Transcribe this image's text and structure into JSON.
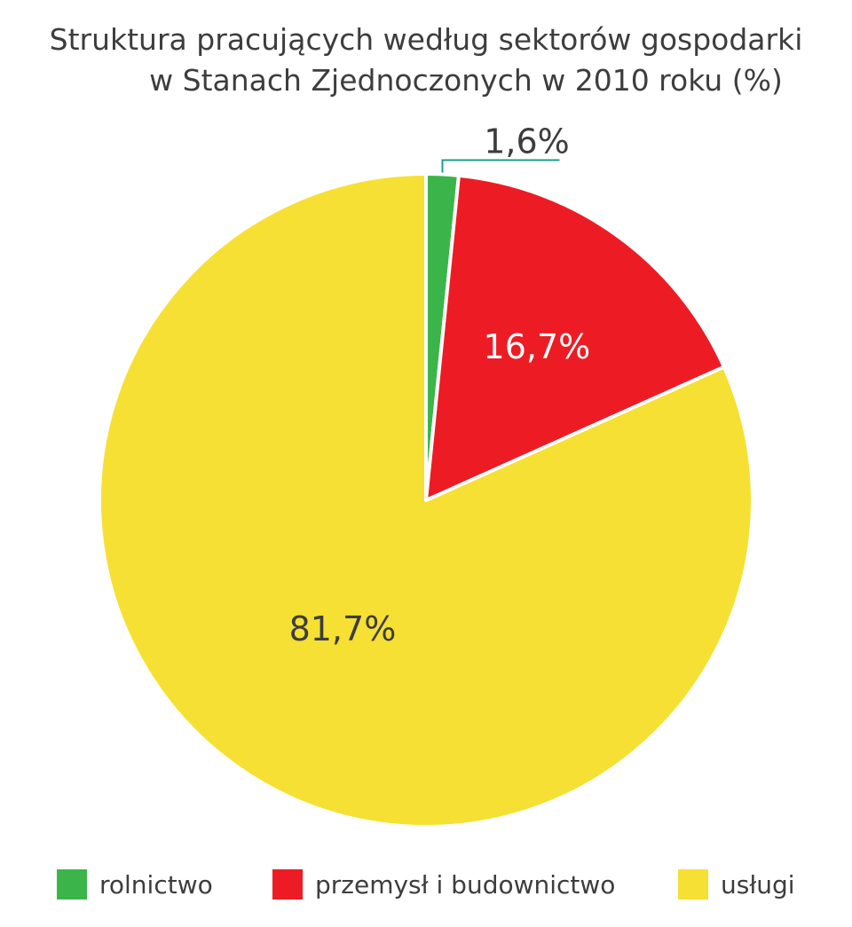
{
  "chart_data": {
    "type": "pie",
    "title_line1": "Struktura pracujących według sektorów gospodarki",
    "title_line2": "w Stanach Zjednoczonych w 2010 roku (%)",
    "slices": [
      {
        "name": "rolnictwo",
        "value": 1.6,
        "label": "1,6%",
        "color": "#3bb54a"
      },
      {
        "name": "przemysł i budownictwo",
        "value": 16.7,
        "label": "16,7%",
        "color": "#ed1c24"
      },
      {
        "name": "usługi",
        "value": 81.7,
        "label": "81,7%",
        "color": "#f6e033"
      }
    ],
    "start_angle": "top",
    "direction": "clockwise",
    "legend_position": "bottom"
  },
  "colors": {
    "leader_line": "#1a9e8f",
    "label_dark": "#3d3d3d",
    "label_light": "#ffffff"
  }
}
